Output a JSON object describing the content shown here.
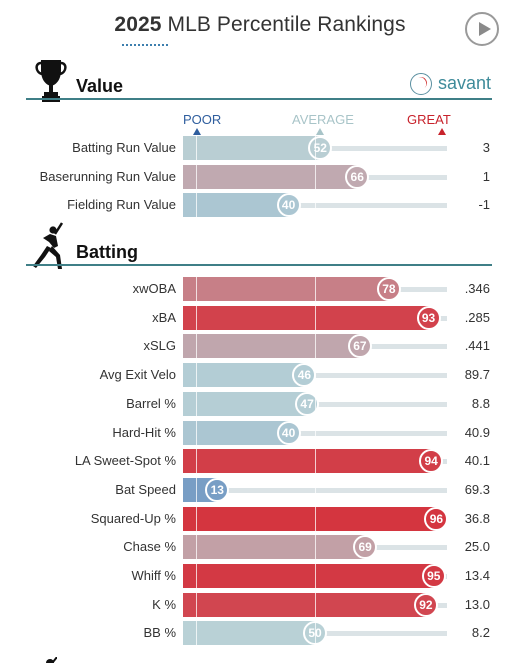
{
  "header": {
    "title_year": "2025",
    "title_rest": "MLB Percentile Rankings"
  },
  "sections": {
    "value_label": "Value",
    "batting_label": "Batting",
    "savant_text": "savant"
  },
  "scale": {
    "poor": "POOR",
    "average": "AVERAGE",
    "great": "GREAT"
  },
  "colors": {
    "poor": "#3d6fb6",
    "great": "#d7232e",
    "rule": "#3f7f87",
    "track": "#dbe3e6"
  },
  "value_rows": [
    {
      "label": "Batting Run Value",
      "percentile": 52,
      "value": "3"
    },
    {
      "label": "Baserunning Run Value",
      "percentile": 66,
      "value": "1"
    },
    {
      "label": "Fielding Run Value",
      "percentile": 40,
      "value": "-1"
    }
  ],
  "batting_rows": [
    {
      "label": "xwOBA",
      "percentile": 78,
      "value": ".346"
    },
    {
      "label": "xBA",
      "percentile": 93,
      "value": ".285"
    },
    {
      "label": "xSLG",
      "percentile": 67,
      "value": ".441"
    },
    {
      "label": "Avg Exit Velo",
      "percentile": 46,
      "value": "89.7"
    },
    {
      "label": "Barrel %",
      "percentile": 47,
      "value": "8.8"
    },
    {
      "label": "Hard-Hit %",
      "percentile": 40,
      "value": "40.9"
    },
    {
      "label": "LA Sweet-Spot %",
      "percentile": 94,
      "value": "40.1"
    },
    {
      "label": "Bat Speed",
      "percentile": 13,
      "value": "69.3"
    },
    {
      "label": "Squared-Up %",
      "percentile": 96,
      "value": "36.8"
    },
    {
      "label": "Chase %",
      "percentile": 69,
      "value": "25.0"
    },
    {
      "label": "Whiff %",
      "percentile": 95,
      "value": "13.4"
    },
    {
      "label": "K %",
      "percentile": 92,
      "value": "13.0"
    },
    {
      "label": "BB %",
      "percentile": 50,
      "value": "8.2"
    }
  ]
}
